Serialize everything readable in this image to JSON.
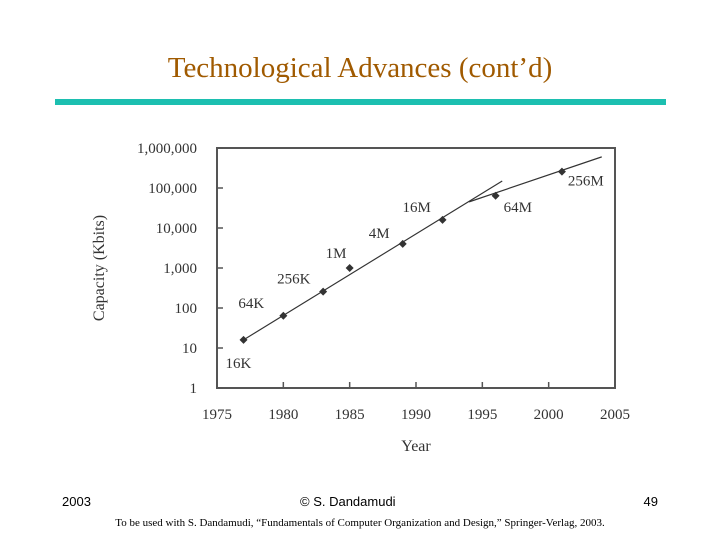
{
  "slide": {
    "title": "Technological Advances (cont’d)",
    "accent_color": "#1cbfb0",
    "title_color": "#a05a00"
  },
  "footer": {
    "year": "2003",
    "author": "© S. Dandamudi",
    "page": "49",
    "note": "To be used with S. Dandamudi, “Fundamentals of Computer Organization and Design,” Springer-Verlag, 2003."
  },
  "chart_data": {
    "type": "scatter",
    "title": "",
    "xlabel": "Year",
    "ylabel": "Capacity (Kbits)",
    "xlim": [
      1975,
      2005
    ],
    "ylim": [
      1,
      1000000
    ],
    "y_scale": "log",
    "x_ticks": [
      "1975",
      "1980",
      "1985",
      "1990",
      "1995",
      "2000",
      "2005"
    ],
    "y_ticks": [
      "1",
      "10",
      "100",
      "1,000",
      "10,000",
      "100,000",
      "1,000,000"
    ],
    "points": [
      {
        "x": 1977,
        "y": 16,
        "label": "16K"
      },
      {
        "x": 1980,
        "y": 64,
        "label": "64K"
      },
      {
        "x": 1983,
        "y": 256,
        "label": "256K"
      },
      {
        "x": 1985,
        "y": 1000,
        "label": "1M"
      },
      {
        "x": 1989,
        "y": 4000,
        "label": "4M"
      },
      {
        "x": 1992,
        "y": 16000,
        "label": "16M"
      },
      {
        "x": 1996,
        "y": 64000,
        "label": "64M"
      },
      {
        "x": 2001,
        "y": 256000,
        "label": "256M"
      }
    ],
    "trend_lines": [
      {
        "x": [
          1977,
          1996.5
        ],
        "y": [
          16,
          150000
        ]
      },
      {
        "x": [
          1994,
          2004
        ],
        "y": [
          45000,
          600000
        ]
      }
    ]
  }
}
